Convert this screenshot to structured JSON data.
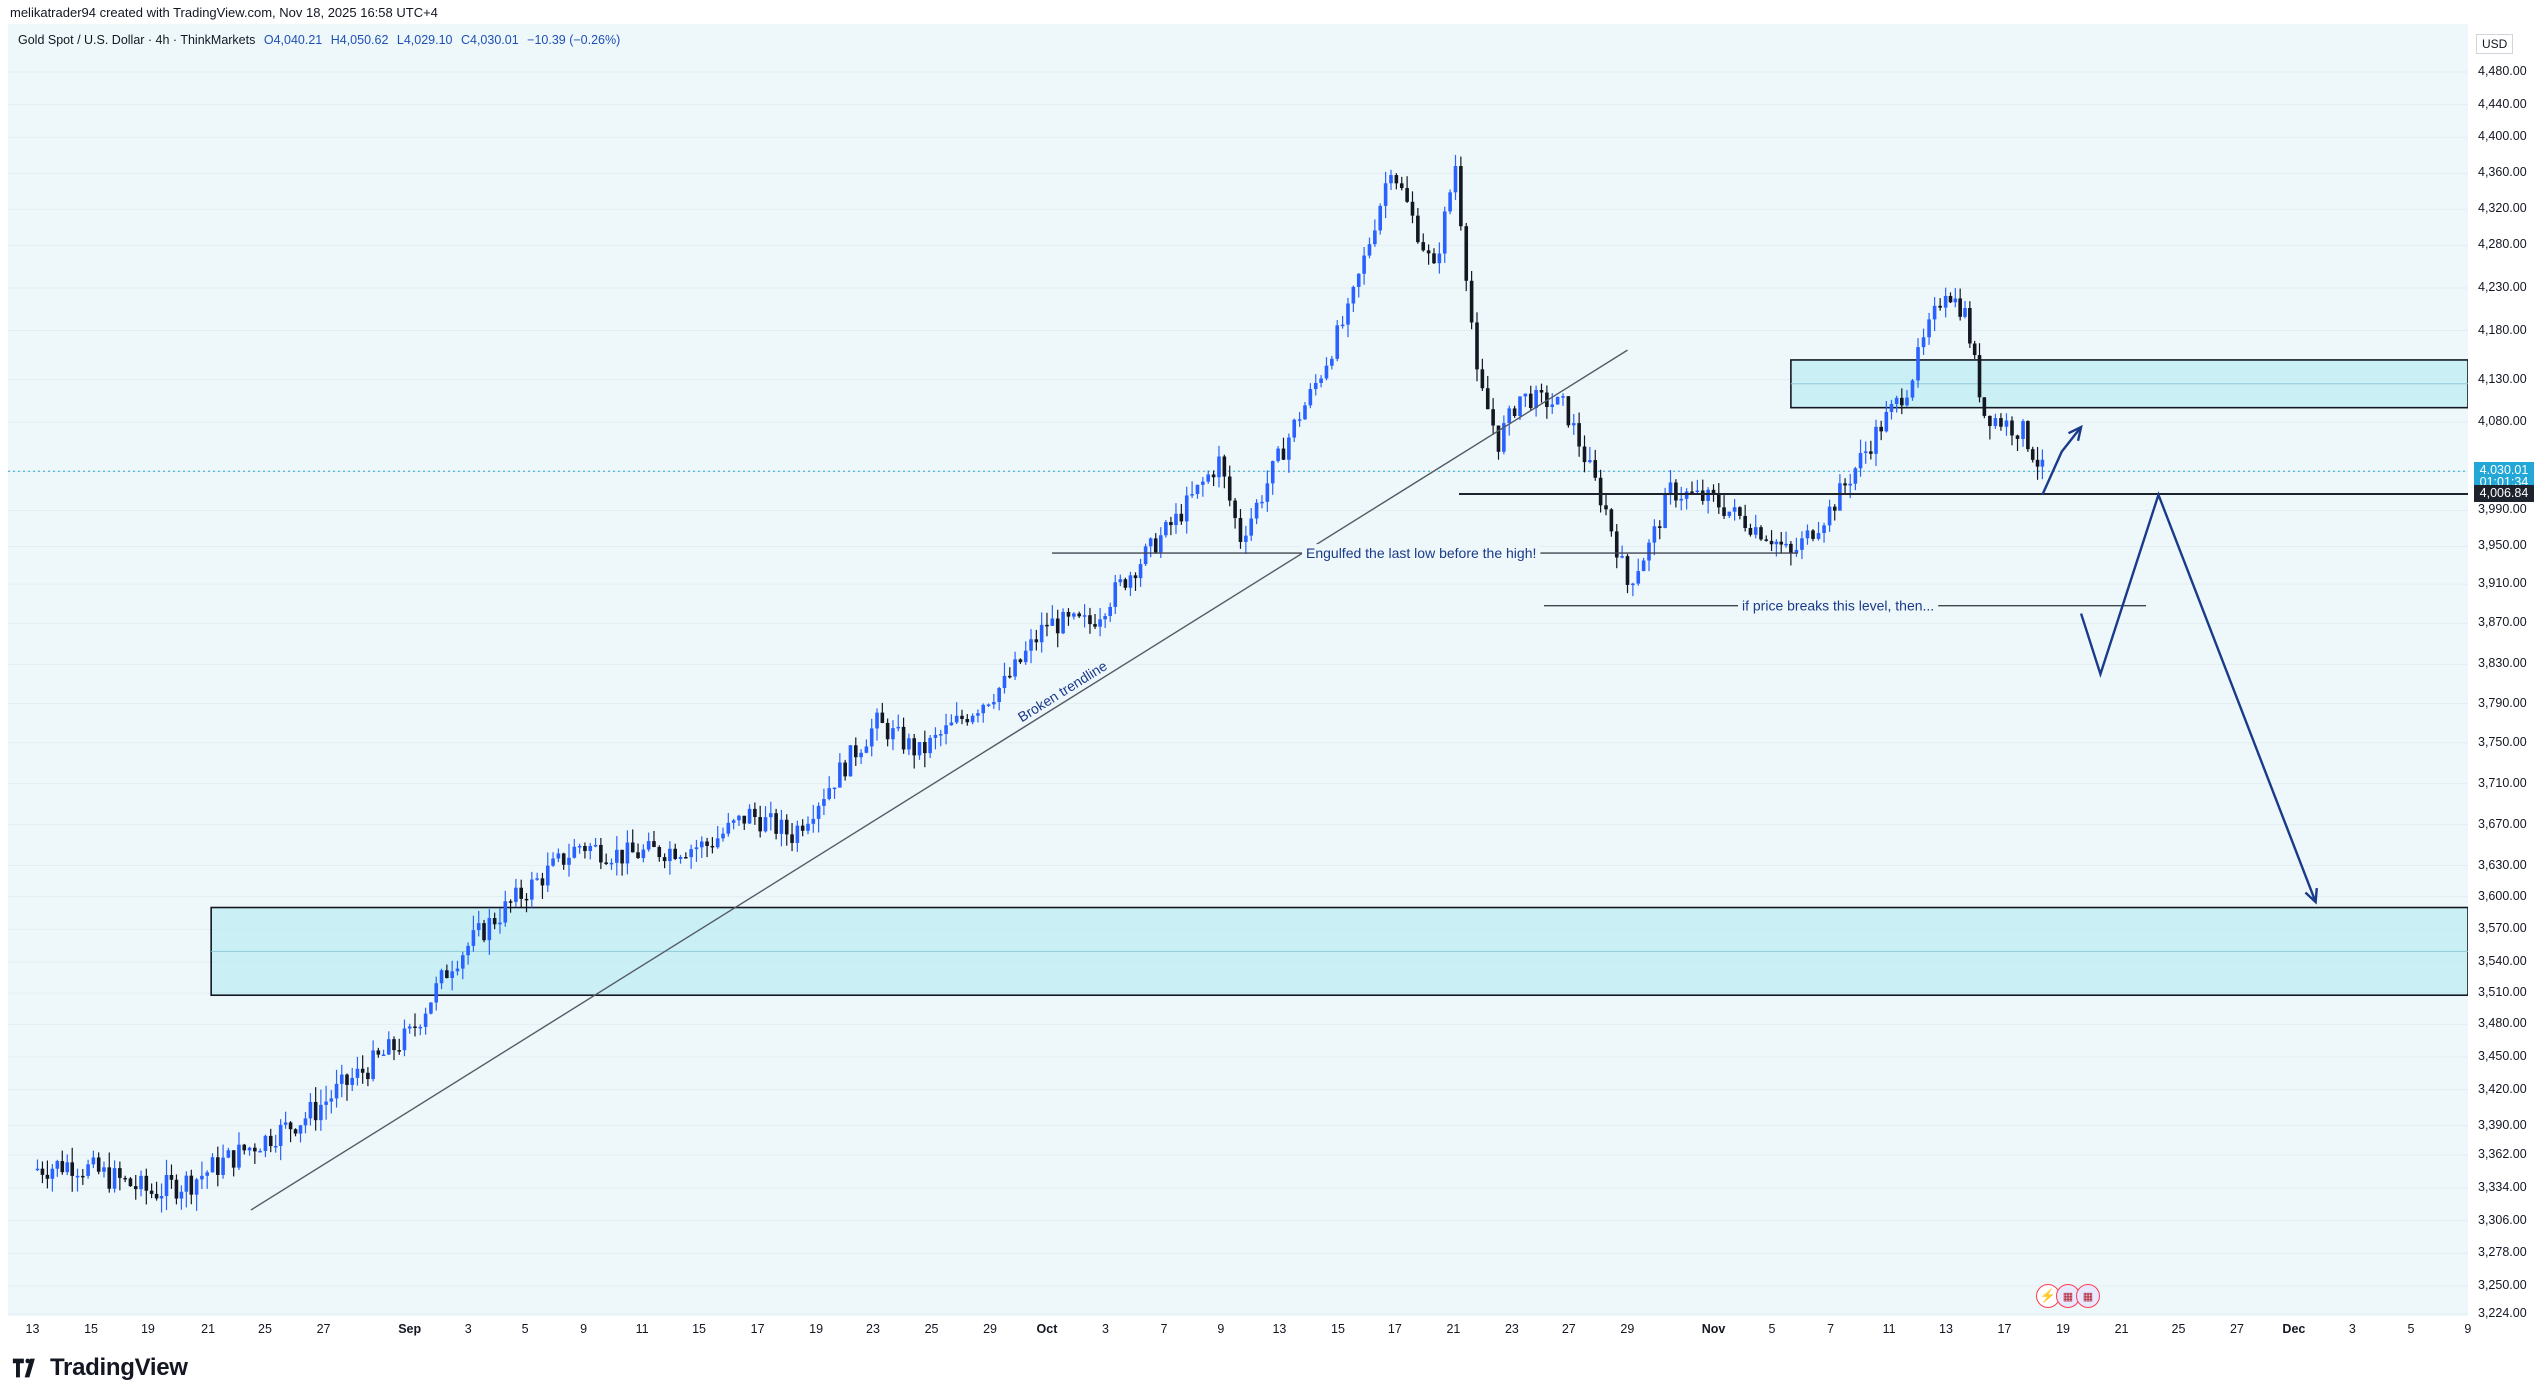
{
  "header": {
    "credit": "melikatrader94 created with TradingView.com, Nov 18, 2025 16:58 UTC+4"
  },
  "legend": {
    "symbol": "Gold Spot / U.S. Dollar · 4h · ThinkMarkets",
    "open": "O4,040.21",
    "high": "H4,050.62",
    "low": "L4,029.10",
    "close": "C4,030.01",
    "change": "−10.39 (−0.26%)"
  },
  "price_axis": {
    "currency": "USD",
    "labels": [
      "4,480.00",
      "4,440.00",
      "4,400.00",
      "4,360.00",
      "4,320.00",
      "4,280.00",
      "4,230.00",
      "4,180.00",
      "4,130.00",
      "4,080.00",
      "4,030.00",
      "3,990.00",
      "3,950.00",
      "3,910.00",
      "3,870.00",
      "3,830.00",
      "3,790.00",
      "3,750.00",
      "3,710.00",
      "3,670.00",
      "3,630.00",
      "3,600.00",
      "3,570.00",
      "3,540.00",
      "3,510.00",
      "3,480.00",
      "3,450.00",
      "3,420.00",
      "3,390.00",
      "3,362.00",
      "3,334.00",
      "3,306.00",
      "3,278.00",
      "3,250.00",
      "3,224.00"
    ],
    "current_price": "4,030.01",
    "countdown": "01:01:34",
    "level_price": "4,006.84"
  },
  "time_axis": {
    "labels": [
      "13",
      "15",
      "19",
      "21",
      "25",
      "27",
      "Sep",
      "3",
      "5",
      "9",
      "11",
      "15",
      "17",
      "19",
      "23",
      "25",
      "29",
      "Oct",
      "3",
      "7",
      "9",
      "13",
      "15",
      "17",
      "21",
      "23",
      "27",
      "29",
      "Nov",
      "5",
      "7",
      "11",
      "13",
      "17",
      "19",
      "21",
      "25",
      "27",
      "Dec",
      "3",
      "5",
      "9"
    ],
    "bold": [
      "Sep",
      "Oct",
      "Nov",
      "Dec"
    ]
  },
  "annotations": {
    "engulfed": "Engulfed the last low before the high!",
    "breaks": "if price breaks this level, then...",
    "trendline": "Broken trendline"
  },
  "footer": {
    "brand": "TradingView"
  },
  "news": {
    "icons": [
      "lightning-icon",
      "us-flag-icon",
      "us-flag-icon"
    ]
  },
  "colors": {
    "bull": "#2962ff",
    "bear": "#131722",
    "zone_fill": "#b2ebf2",
    "arrow": "#1a3a8a",
    "price_tag": "#22a7d6",
    "level_tag": "#1e222d"
  },
  "chart_data": {
    "type": "candlestick",
    "timeframe": "4h",
    "ylim": [
      3224,
      4480
    ],
    "price_path": [
      {
        "x": "Aug 13",
        "y": 3350
      },
      {
        "x": "Aug 15",
        "y": 3355
      },
      {
        "x": "Aug 19",
        "y": 3330
      },
      {
        "x": "Aug 21",
        "y": 3340
      },
      {
        "x": "Aug 25",
        "y": 3380
      },
      {
        "x": "Aug 27",
        "y": 3400
      },
      {
        "x": "Sep 1",
        "y": 3470
      },
      {
        "x": "Sep 3",
        "y": 3540
      },
      {
        "x": "Sep 5",
        "y": 3580
      },
      {
        "x": "Sep 9",
        "y": 3650
      },
      {
        "x": "Sep 11",
        "y": 3640
      },
      {
        "x": "Sep 15",
        "y": 3650
      },
      {
        "x": "Sep 17",
        "y": 3680
      },
      {
        "x": "Sep 19",
        "y": 3660
      },
      {
        "x": "Sep 23",
        "y": 3770
      },
      {
        "x": "Sep 25",
        "y": 3740
      },
      {
        "x": "Sep 29",
        "y": 3810
      },
      {
        "x": "Oct 1",
        "y": 3870
      },
      {
        "x": "Oct 3",
        "y": 3870
      },
      {
        "x": "Oct 7",
        "y": 3980
      },
      {
        "x": "Oct 9",
        "y": 4040
      },
      {
        "x": "Oct 10",
        "y": 3960
      },
      {
        "x": "Oct 13",
        "y": 4100
      },
      {
        "x": "Oct 15",
        "y": 4200
      },
      {
        "x": "Oct 17",
        "y": 4370
      },
      {
        "x": "Oct 19",
        "y": 4250
      },
      {
        "x": "Oct 20",
        "y": 4370
      },
      {
        "x": "Oct 21",
        "y": 4130
      },
      {
        "x": "Oct 22",
        "y": 4060
      },
      {
        "x": "Oct 23",
        "y": 4110
      },
      {
        "x": "Oct 25",
        "y": 4100
      },
      {
        "x": "Oct 27",
        "y": 3990
      },
      {
        "x": "Oct 28",
        "y": 3910
      },
      {
        "x": "Oct 29",
        "y": 3950
      },
      {
        "x": "Oct 30",
        "y": 4010
      },
      {
        "x": "Nov 1",
        "y": 4000
      },
      {
        "x": "Nov 4",
        "y": 3960
      },
      {
        "x": "Nov 5",
        "y": 3940
      },
      {
        "x": "Nov 7",
        "y": 3990
      },
      {
        "x": "Nov 11",
        "y": 4120
      },
      {
        "x": "Nov 13",
        "y": 4230
      },
      {
        "x": "Nov 14",
        "y": 4200
      },
      {
        "x": "Nov 15",
        "y": 4090
      },
      {
        "x": "Nov 17",
        "y": 4070
      },
      {
        "x": "Nov 18",
        "y": 4030
      }
    ],
    "levels": [
      {
        "price": 4006.84,
        "label": "4,006.84"
      },
      {
        "price": 3943,
        "label": "Engulfed the last low before the high!"
      },
      {
        "price": 3888,
        "label": "if price breaks this level, then..."
      }
    ],
    "zones": [
      {
        "from": "Aug 22",
        "to": "Dec 9",
        "price_low": 3508,
        "price_high": 3590
      },
      {
        "from": "Nov 5",
        "to": "Dec 9",
        "price_low": 4097,
        "price_high": 4150
      }
    ],
    "trendline": {
      "label": "Broken trendline",
      "from": {
        "x": "Aug 24",
        "y": 3315
      },
      "to": {
        "x": "Oct 28",
        "y": 4160
      }
    },
    "projection": [
      {
        "x": "Nov 18",
        "y": 4006
      },
      {
        "x": "Nov 19",
        "y": 4050
      },
      {
        "x": "Nov 20",
        "y": 4075
      }
    ],
    "scenario_path": [
      {
        "x": "Nov 20",
        "y": 3880
      },
      {
        "x": "Nov 21",
        "y": 3820
      },
      {
        "x": "Nov 24",
        "y": 4006
      },
      {
        "x": "Dec 2",
        "y": 3595
      }
    ]
  }
}
